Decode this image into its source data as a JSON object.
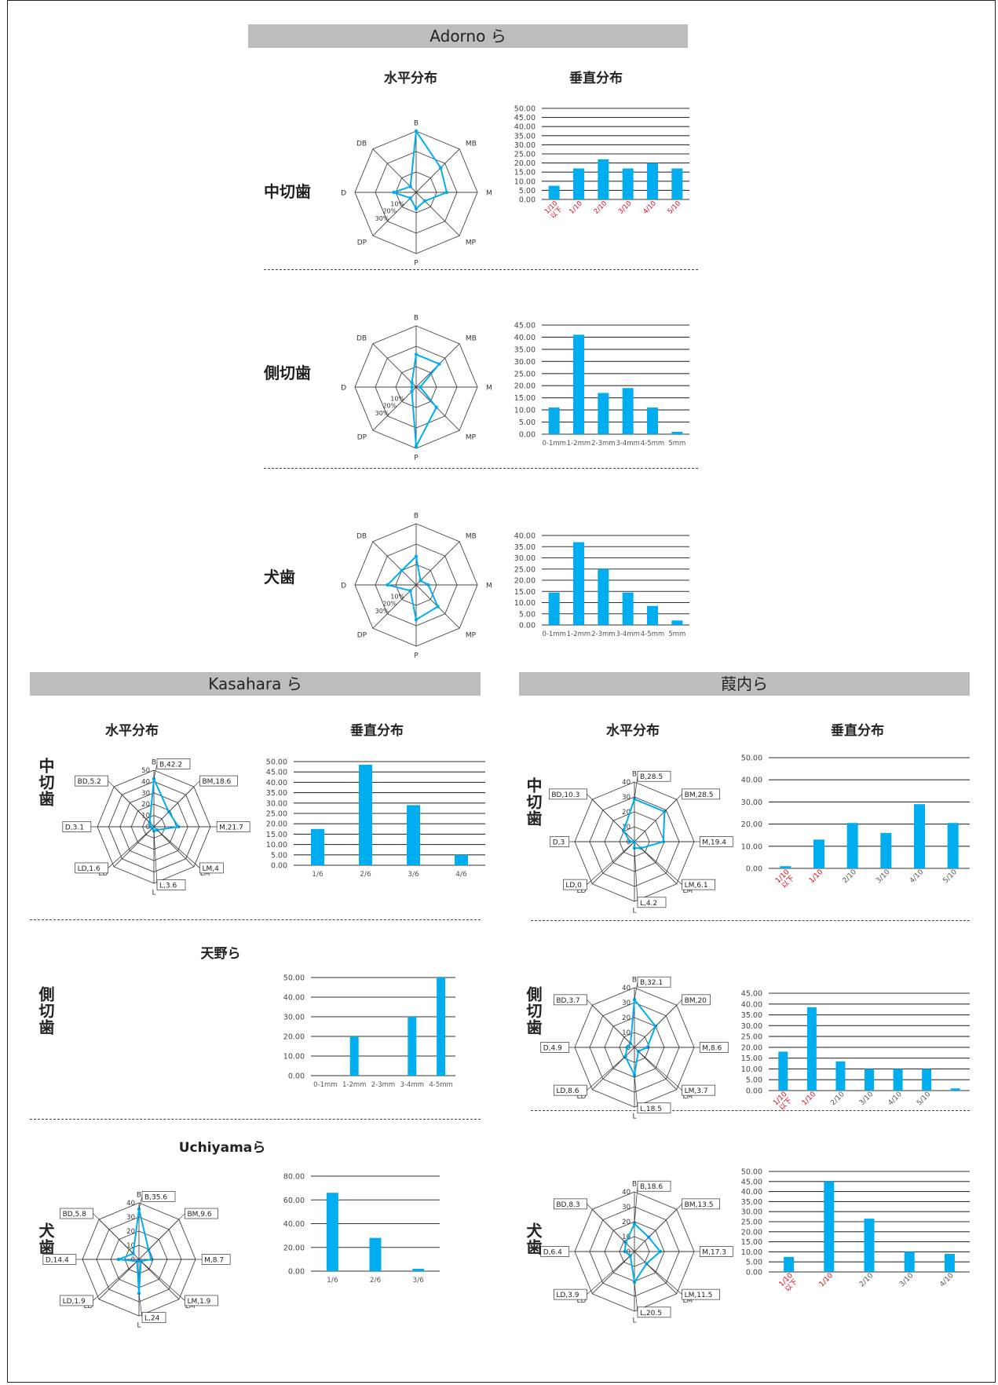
{
  "sections": {
    "adorno": "Adorno ら",
    "kasahara": "Kasahara ら",
    "kuzuuchi": "葭内ら"
  },
  "headers": {
    "horizontal": "水平分布",
    "vertical": "垂直分布"
  },
  "subtitles": {
    "amano": "天野ら",
    "uchiyama": "Uchiyamaら"
  },
  "teeth": {
    "central": "中切歯",
    "lateral": "側切歯",
    "canine": "犬歯"
  },
  "colors": {
    "series": "#00aeef",
    "grid": "#555555",
    "axis_label_red": "#e2001a"
  },
  "chart_data": [
    {
      "id": "adorno-central-radar",
      "type": "radar",
      "axes": [
        "B",
        "MB",
        "M",
        "MP",
        "P",
        "DP",
        "D",
        "DB"
      ],
      "ring_labels": [
        "10%",
        "20%",
        "30%"
      ],
      "values": [
        30,
        17,
        15,
        6,
        8,
        4,
        11,
        4
      ],
      "rmax": 30
    },
    {
      "id": "adorno-central-bar",
      "type": "bar",
      "categories": [
        "1/10 以下",
        "1/10",
        "2/10",
        "3/10",
        "4/10",
        "5/10"
      ],
      "values": [
        7.5,
        17,
        22,
        17,
        20,
        17
      ],
      "ylim": [
        0,
        50
      ],
      "ystep": 5,
      "yticks_decimals": 2,
      "cat_color": "red",
      "cat_rotate": true
    },
    {
      "id": "adorno-lateral-radar",
      "type": "radar",
      "axes": [
        "B",
        "MB",
        "M",
        "MP",
        "P",
        "DP",
        "D",
        "DB"
      ],
      "ring_labels": [
        "10%",
        "20%",
        "30%"
      ],
      "values": [
        16,
        16,
        2,
        14,
        29,
        3,
        2,
        3
      ],
      "rmax": 30
    },
    {
      "id": "adorno-lateral-bar",
      "type": "bar",
      "categories": [
        "0-1mm",
        "1-2mm",
        "2-3mm",
        "3-4mm",
        "4-5mm",
        "5mm"
      ],
      "values": [
        11,
        41,
        17,
        19,
        11,
        1
      ],
      "ylim": [
        0,
        45
      ],
      "ystep": 5,
      "yticks_decimals": 2,
      "cat_color": "grey",
      "cat_rotate": false
    },
    {
      "id": "adorno-canine-radar",
      "type": "radar",
      "axes": [
        "B",
        "MB",
        "M",
        "MP",
        "P",
        "DP",
        "D",
        "DB"
      ],
      "ring_labels": [
        "10%",
        "20%",
        "30%"
      ],
      "values": [
        14,
        3,
        6,
        15,
        17,
        4,
        14,
        10
      ],
      "rmax": 30
    },
    {
      "id": "adorno-canine-bar",
      "type": "bar",
      "categories": [
        "0-1mm",
        "1-2mm",
        "2-3mm",
        "3-4mm",
        "4-5mm",
        "5mm"
      ],
      "values": [
        14.5,
        37,
        25,
        14.5,
        8.5,
        2
      ],
      "ylim": [
        0,
        40
      ],
      "ystep": 5,
      "yticks_decimals": 2,
      "cat_color": "grey",
      "cat_rotate": false
    },
    {
      "id": "kasahara-central-radar",
      "type": "radar",
      "axes": [
        "B",
        "BM",
        "M",
        "LM",
        "L",
        "LD",
        "D",
        "BD"
      ],
      "ring_labels": [
        "0",
        "10",
        "20",
        "30",
        "40",
        "50"
      ],
      "values": [
        42.2,
        18.6,
        21.7,
        4,
        3.6,
        1.6,
        3.1,
        5.2
      ],
      "labels": [
        "B,42.2",
        "BM,18.6",
        "M,21.7",
        "LM,4",
        "L,3.6",
        "LD,1.6",
        "D,3.1",
        "BD,5.2"
      ],
      "rmax": 50
    },
    {
      "id": "kasahara-central-bar",
      "type": "bar",
      "categories": [
        "1/6",
        "2/6",
        "3/6",
        "4/6"
      ],
      "values": [
        17.5,
        48.5,
        29,
        5
      ],
      "ylim": [
        0,
        50
      ],
      "ystep": 5,
      "yticks_decimals": 2,
      "cat_color": "grey",
      "cat_rotate": false
    },
    {
      "id": "amano-lateral-bar",
      "type": "bar",
      "categories": [
        "0-1mm",
        "1-2mm",
        "2-3mm",
        "3-4mm",
        "4-5mm"
      ],
      "values": [
        0,
        20,
        0,
        30,
        50
      ],
      "ylim": [
        0,
        50
      ],
      "ystep": 10,
      "yticks_decimals": 2,
      "cat_color": "grey",
      "cat_rotate": false
    },
    {
      "id": "uchiyama-canine-radar",
      "type": "radar",
      "axes": [
        "B",
        "BM",
        "M",
        "LM",
        "L",
        "LD",
        "D",
        "BD"
      ],
      "ring_labels": [
        "0",
        "10",
        "20",
        "30",
        "40"
      ],
      "values": [
        35.6,
        9.6,
        8.7,
        1.9,
        24,
        1.9,
        14.4,
        5.8
      ],
      "labels": [
        "B,35.6",
        "BM,9.6",
        "M,8.7",
        "LM,1.9",
        "L,24",
        "LD,1.9",
        "D,14.4",
        "BD,5.8"
      ],
      "rmax": 40
    },
    {
      "id": "uchiyama-canine-bar",
      "type": "bar",
      "categories": [
        "1/6",
        "2/6",
        "3/6"
      ],
      "values": [
        66,
        28,
        2
      ],
      "ylim": [
        0,
        80
      ],
      "ystep": 20,
      "yticks_decimals": 2,
      "cat_color": "grey",
      "cat_rotate": false
    },
    {
      "id": "kuzuuchi-central-radar",
      "type": "radar",
      "axes": [
        "B",
        "BM",
        "M",
        "LM",
        "L",
        "LD",
        "D",
        "BD"
      ],
      "ring_labels": [
        "0",
        "10",
        "20",
        "30",
        "40"
      ],
      "values": [
        28.5,
        28.5,
        19.4,
        6.1,
        4.2,
        0,
        3,
        10.3
      ],
      "labels": [
        "B,28.5",
        "BM,28.5",
        "M,19.4",
        "LM,6.1",
        "L,4.2",
        "LD,0",
        "D,3",
        "BD,10.3"
      ],
      "rmax": 40
    },
    {
      "id": "kuzuuchi-central-bar",
      "type": "bar",
      "categories": [
        "1/10 以下",
        "1/10",
        "2/10",
        "3/10",
        "4/10",
        "5/10"
      ],
      "values": [
        1,
        13,
        20.5,
        16,
        29,
        20.5
      ],
      "ylim": [
        0,
        50
      ],
      "ystep": 10,
      "yticks_decimals": 2,
      "cat_color": "mixed2",
      "cat_rotate": true
    },
    {
      "id": "kuzuuchi-lateral-radar",
      "type": "radar",
      "axes": [
        "B",
        "BM",
        "M",
        "LM",
        "L",
        "LD",
        "D",
        "BD"
      ],
      "ring_labels": [
        "0",
        "10",
        "20",
        "30",
        "40"
      ],
      "values": [
        32.1,
        20,
        8.6,
        3.7,
        18.5,
        8.6,
        4.9,
        3.7
      ],
      "labels": [
        "B,32.1",
        "BM,20",
        "M,8.6",
        "LM,3.7",
        "L,18.5",
        "LD,8.6",
        "D,4.9",
        "BD,3.7"
      ],
      "rmax": 40
    },
    {
      "id": "kuzuuchi-lateral-bar",
      "type": "bar",
      "categories": [
        "1/10 以下",
        "1/10",
        "2/10",
        "3/10",
        "4/10",
        "5/10",
        ""
      ],
      "values": [
        18,
        38.5,
        13.5,
        10,
        10,
        10,
        1
      ],
      "ylim": [
        0,
        45
      ],
      "ystep": 5,
      "yticks_decimals": 2,
      "cat_color": "mixed2",
      "cat_rotate": true
    },
    {
      "id": "kuzuuchi-canine-radar",
      "type": "radar",
      "axes": [
        "B",
        "BM",
        "M",
        "LM",
        "L",
        "LD",
        "D",
        "BD"
      ],
      "ring_labels": [
        "0",
        "10",
        "20",
        "30",
        "40"
      ],
      "values": [
        18.6,
        13.5,
        17.3,
        11.5,
        20.5,
        3.9,
        6.4,
        8.3
      ],
      "labels": [
        "B,18.6",
        "BM,13.5",
        "M,17.3",
        "LM,11.5",
        "L,20.5",
        "LD,3.9",
        "D,6.4",
        "BD,8.3"
      ],
      "rmax": 40
    },
    {
      "id": "kuzuuchi-canine-bar",
      "type": "bar",
      "categories": [
        "1/10 以下",
        "1/10",
        "2/10",
        "3/10",
        "4/10"
      ],
      "values": [
        7.5,
        45,
        26.5,
        10,
        9
      ],
      "ylim": [
        0,
        50
      ],
      "ystep": 5,
      "yticks_decimals": 2,
      "cat_color": "mixed2",
      "cat_rotate": true
    }
  ]
}
